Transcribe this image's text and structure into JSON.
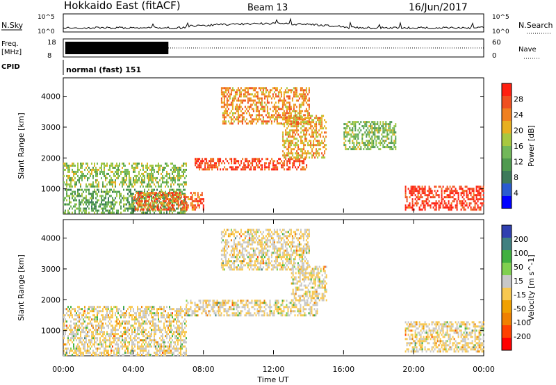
{
  "header": {
    "station": "Hokkaido East (fitACF)",
    "beam": "Beam 13",
    "date": "16/Jun/2017"
  },
  "noise_panel": {
    "left_label": "N.Sky",
    "right_label": "N.Search",
    "left_ticks": [
      "10^5",
      "10^0"
    ],
    "right_ticks": [
      "10^5",
      "10^0"
    ]
  },
  "freq_panel": {
    "left_label": "Freq.",
    "left_unit": "[MHz]",
    "left_ticks": [
      "18",
      "8"
    ],
    "right_label": "Nave",
    "right_ticks": [
      "60",
      "0"
    ],
    "freq_block_end_hours": 6.0
  },
  "cpid": {
    "label": "CPID",
    "text": "normal (fast) 151"
  },
  "chart_data": [
    {
      "type": "heatmap",
      "name": "power",
      "ylabel": "Slant Range [km]",
      "ylim": [
        180,
        4600
      ],
      "yticks": [
        1000,
        2000,
        3000,
        4000
      ],
      "xlim": [
        0,
        24
      ],
      "xticks": [
        "00:00",
        "04:00",
        "08:00",
        "12:00",
        "16:00",
        "20:00",
        "00:00"
      ],
      "colorbar": {
        "label": "Power [dB]",
        "ticks": [
          "4",
          "8",
          "12",
          "16",
          "20",
          "24",
          "28"
        ],
        "range": [
          0,
          30
        ],
        "colors": [
          "#0000ff",
          "#2a5bd0",
          "#3d7a5a",
          "#4f9a4f",
          "#72b85a",
          "#a8c840",
          "#e8b020",
          "#f08020",
          "#f05020",
          "#ff2010"
        ]
      },
      "regions": [
        {
          "t": [
            0,
            7
          ],
          "r": [
            1100,
            1850
          ],
          "v": 15
        },
        {
          "t": [
            0,
            7
          ],
          "r": [
            200,
            1000
          ],
          "v": 12
        },
        {
          "t": [
            4,
            8
          ],
          "r": [
            300,
            900
          ],
          "v": 24
        },
        {
          "t": [
            7.5,
            14
          ],
          "r": [
            1600,
            2000
          ],
          "v": 26
        },
        {
          "t": [
            9,
            14
          ],
          "r": [
            3100,
            4300
          ],
          "v": 22
        },
        {
          "t": [
            12.5,
            15
          ],
          "r": [
            2000,
            3400
          ],
          "v": 20
        },
        {
          "t": [
            16,
            19
          ],
          "r": [
            2300,
            3200
          ],
          "v": 14
        },
        {
          "t": [
            19.5,
            24
          ],
          "r": [
            300,
            1100
          ],
          "v": 28
        }
      ]
    },
    {
      "type": "heatmap",
      "name": "velocity",
      "ylabel": "Slant Range [km]",
      "ylim": [
        180,
        4600
      ],
      "yticks": [
        1000,
        2000,
        3000,
        4000
      ],
      "xlim": [
        0,
        24
      ],
      "xticks": [
        "00:00",
        "04:00",
        "08:00",
        "12:00",
        "16:00",
        "20:00",
        "00:00"
      ],
      "xlabel": "Time UT",
      "colorbar": {
        "label": "Velocity [m s^-1]",
        "ticks": [
          "200",
          "100",
          "50",
          "15",
          "-15",
          "-50",
          "-100",
          "-200"
        ],
        "range": [
          -250,
          250
        ],
        "colors": [
          "#ff0000",
          "#ff4000",
          "#f08000",
          "#f0a000",
          "#f8c850",
          "#c8c8c8",
          "#80d050",
          "#40b040",
          "#408080",
          "#3040b0"
        ]
      },
      "regions": [
        {
          "t": [
            0,
            7
          ],
          "r": [
            200,
            1800
          ],
          "v": 0
        },
        {
          "t": [
            7,
            14.5
          ],
          "r": [
            1500,
            2000
          ],
          "v": 0
        },
        {
          "t": [
            9,
            14
          ],
          "r": [
            3000,
            4300
          ],
          "v": 0
        },
        {
          "t": [
            13,
            15
          ],
          "r": [
            2000,
            3100
          ],
          "v": 0
        },
        {
          "t": [
            19.5,
            24
          ],
          "r": [
            300,
            1300
          ],
          "v": 0
        }
      ]
    }
  ]
}
